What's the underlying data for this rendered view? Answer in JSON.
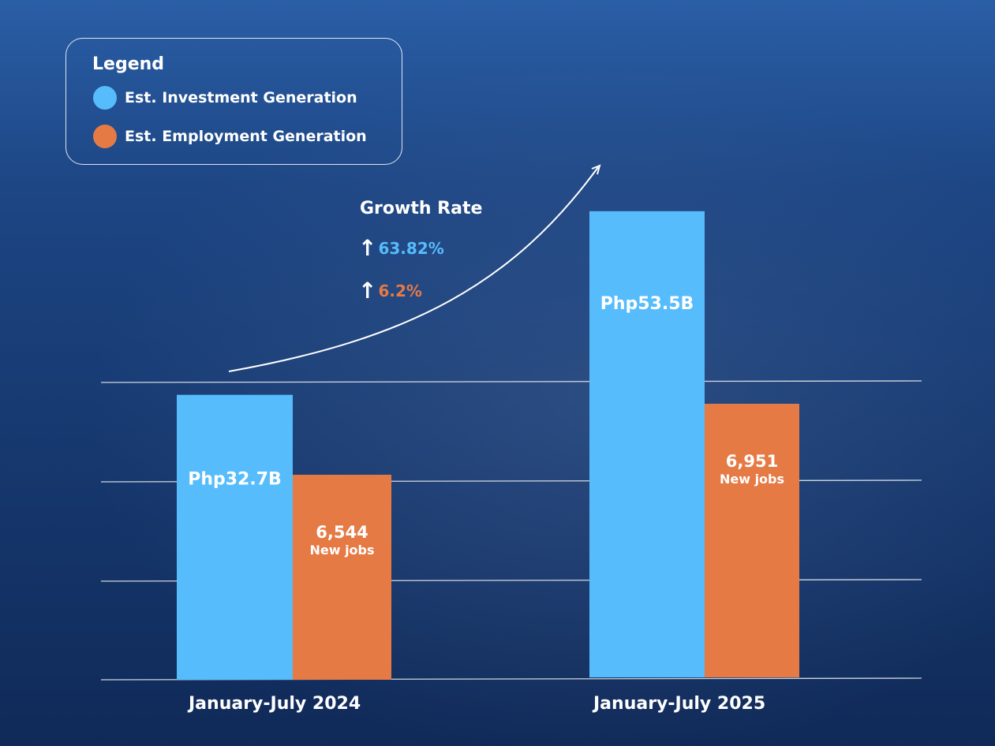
{
  "chart_data": {
    "type": "bar",
    "categories": [
      "January-July 2024",
      "January-July 2025"
    ],
    "series": [
      {
        "name": "Est. Investment Generation",
        "labels": [
          "Php32.7B",
          "Php53.5B"
        ],
        "data": [
          32.7,
          53.5
        ],
        "color": "#56bcfb"
      },
      {
        "name": "Est. Employment Generation",
        "labels": [
          "6,544",
          "6,951"
        ],
        "data": [
          6544,
          6951
        ],
        "sublabel": "New jobs",
        "color": "#e57a45"
      }
    ],
    "grid": true,
    "legend": {
      "title": "Legend",
      "placement": "top-left"
    },
    "annotation": {
      "title": "Growth Rate",
      "investment_rate": "63.82%",
      "employment_rate": "6.2%"
    }
  }
}
